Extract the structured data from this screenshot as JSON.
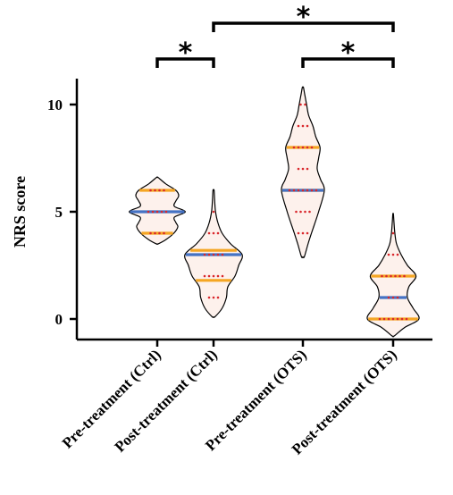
{
  "chart_data": {
    "type": "violin",
    "ylabel": "NRS score",
    "ylim": [
      -1,
      10.5
    ],
    "yticks": [
      0,
      5,
      10
    ],
    "categories": [
      "Pre-treatment (Ctrl)",
      "Post-treatment (Ctrl)",
      "Pre-treatment (OTS)",
      "Post-treatment (OTS)"
    ],
    "violins": [
      {
        "min": 3.5,
        "max": 6.6,
        "median": 5,
        "q1": 4,
        "q3": 6,
        "density": [
          [
            3.5,
            0.03
          ],
          [
            3.7,
            0.3
          ],
          [
            4.0,
            0.58
          ],
          [
            4.3,
            0.72
          ],
          [
            4.5,
            0.65
          ],
          [
            4.75,
            0.6
          ],
          [
            5.0,
            0.98
          ],
          [
            5.25,
            0.6
          ],
          [
            5.5,
            0.65
          ],
          [
            5.75,
            0.75
          ],
          [
            6.0,
            0.65
          ],
          [
            6.3,
            0.3
          ],
          [
            6.6,
            0.03
          ]
        ],
        "points": [
          [
            4,
            4
          ],
          [
            5,
            5
          ],
          [
            6,
            4
          ]
        ]
      },
      {
        "min": 0.1,
        "max": 6.0,
        "median": 3,
        "q1": 1.8,
        "q3": 3.2,
        "density": [
          [
            0.1,
            0.05
          ],
          [
            0.5,
            0.3
          ],
          [
            1.0,
            0.45
          ],
          [
            1.5,
            0.5
          ],
          [
            2.0,
            0.75
          ],
          [
            2.5,
            0.88
          ],
          [
            3.0,
            1.0
          ],
          [
            3.5,
            0.6
          ],
          [
            4.0,
            0.3
          ],
          [
            4.5,
            0.15
          ],
          [
            5.0,
            0.07
          ],
          [
            5.5,
            0.04
          ],
          [
            6.0,
            0.02
          ]
        ],
        "points": [
          [
            1,
            3
          ],
          [
            2,
            5
          ],
          [
            3,
            5
          ],
          [
            4,
            3
          ],
          [
            5,
            1
          ]
        ]
      },
      {
        "min": 2.9,
        "max": 10.8,
        "median": 6,
        "q1": 6,
        "q3": 8,
        "density": [
          [
            2.9,
            0.05
          ],
          [
            3.5,
            0.18
          ],
          [
            4.0,
            0.3
          ],
          [
            5.0,
            0.55
          ],
          [
            6.0,
            0.75
          ],
          [
            6.5,
            0.62
          ],
          [
            7.0,
            0.5
          ],
          [
            7.5,
            0.55
          ],
          [
            8.0,
            0.6
          ],
          [
            8.5,
            0.45
          ],
          [
            9.0,
            0.35
          ],
          [
            9.5,
            0.2
          ],
          [
            10.0,
            0.13
          ],
          [
            10.5,
            0.06
          ],
          [
            10.8,
            0.02
          ]
        ],
        "points": [
          [
            4,
            3
          ],
          [
            5,
            4
          ],
          [
            6,
            7
          ],
          [
            7,
            3
          ],
          [
            8,
            5
          ],
          [
            9,
            3
          ],
          [
            10,
            2
          ]
        ]
      },
      {
        "min": -0.8,
        "max": 4.9,
        "median": 1,
        "q1": 0,
        "q3": 2,
        "density": [
          [
            -0.8,
            0.03
          ],
          [
            -0.4,
            0.4
          ],
          [
            0.0,
            0.9
          ],
          [
            0.5,
            0.7
          ],
          [
            1.0,
            0.5
          ],
          [
            1.5,
            0.55
          ],
          [
            2.0,
            0.8
          ],
          [
            2.5,
            0.5
          ],
          [
            3.0,
            0.28
          ],
          [
            3.5,
            0.12
          ],
          [
            4.0,
            0.06
          ],
          [
            4.5,
            0.03
          ],
          [
            4.9,
            0.01
          ]
        ],
        "points": [
          [
            0,
            7
          ],
          [
            1,
            3
          ],
          [
            2,
            6
          ],
          [
            3,
            3
          ],
          [
            4,
            1
          ]
        ]
      }
    ],
    "significance": [
      {
        "from": 0,
        "to": 1,
        "label": "*"
      },
      {
        "from": 1,
        "to": 3,
        "label": "*"
      },
      {
        "from": 2,
        "to": 3,
        "label": "*"
      }
    ],
    "colors": {
      "violin_fill": "#fdf1ec",
      "violin_stroke": "#000000",
      "median": "#4472c4",
      "quartile": "#f5a623",
      "points": "#d9262b"
    }
  }
}
